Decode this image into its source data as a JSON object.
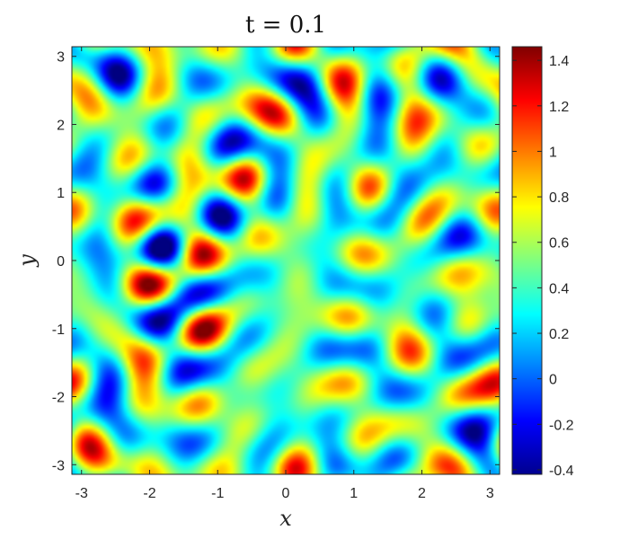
{
  "chart_data": {
    "type": "heatmap",
    "title": "t = 0.1",
    "xlabel": "x",
    "ylabel": "y",
    "xlim": [
      -3.1416,
      3.1416
    ],
    "ylim": [
      -3.1416,
      3.1416
    ],
    "x_ticks": [
      -3,
      -2,
      -1,
      0,
      1,
      2,
      3
    ],
    "x_tick_labels": [
      "-3",
      "-2",
      "-1",
      "0",
      "1",
      "2",
      "3"
    ],
    "y_ticks": [
      -3,
      -2,
      -1,
      0,
      1,
      2,
      3
    ],
    "y_tick_labels": [
      "-3",
      "-2",
      "-1",
      "0",
      "1",
      "2",
      "3"
    ],
    "colormap": "jet",
    "color_range": [
      -0.42,
      1.46
    ],
    "colorbar_ticks": [
      -0.4,
      -0.2,
      0,
      0.2,
      0.4,
      0.6,
      0.8,
      1,
      1.2,
      1.4
    ],
    "colorbar_tick_labels": [
      "-0.4",
      "-0.2",
      "0",
      "0.2",
      "0.4",
      "0.6",
      "0.8",
      "1",
      "1.2",
      "1.4"
    ],
    "grid": false,
    "colorbar_position": "right"
  }
}
